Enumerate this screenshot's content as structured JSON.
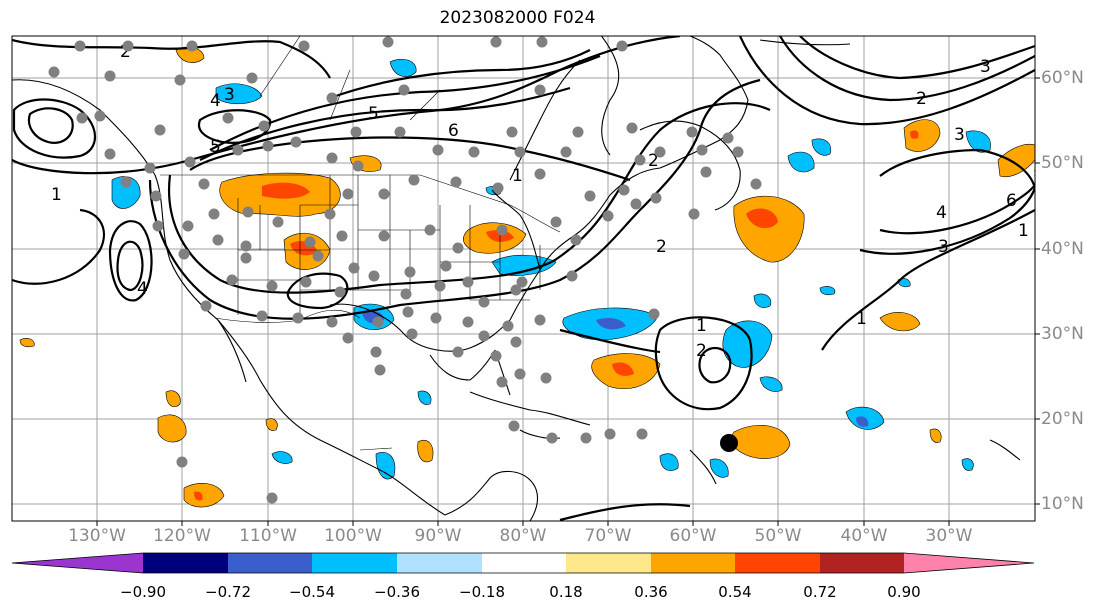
{
  "title": "2023082000 F024",
  "lon_labels": [
    "130°W",
    "120°W",
    "110°W",
    "100°W",
    "90°W",
    "80°W",
    "70°W",
    "60°W",
    "50°W",
    "40°W",
    "30°W"
  ],
  "lat_labels": [
    "60°N",
    "50°N",
    "40°N",
    "30°N",
    "20°N",
    "10°N"
  ],
  "colorbar": {
    "tick_labels": [
      "−0.90",
      "−0.72",
      "−0.54",
      "−0.36",
      "−0.18",
      "0.18",
      "0.36",
      "0.54",
      "0.72",
      "0.90"
    ],
    "colors": [
      "#9a35d0",
      "#00007f",
      "#3a5fcd",
      "#00bfff",
      "#b0e2ff",
      "#ffffff",
      "#ffe88a",
      "#ffa500",
      "#ff4500",
      "#b22222",
      "#ff82ab"
    ]
  },
  "contour_labels": [
    "1",
    "2",
    "3",
    "4",
    "5",
    "6"
  ],
  "station_marker_color": "#808080",
  "storm_marker_color": "#000000"
}
